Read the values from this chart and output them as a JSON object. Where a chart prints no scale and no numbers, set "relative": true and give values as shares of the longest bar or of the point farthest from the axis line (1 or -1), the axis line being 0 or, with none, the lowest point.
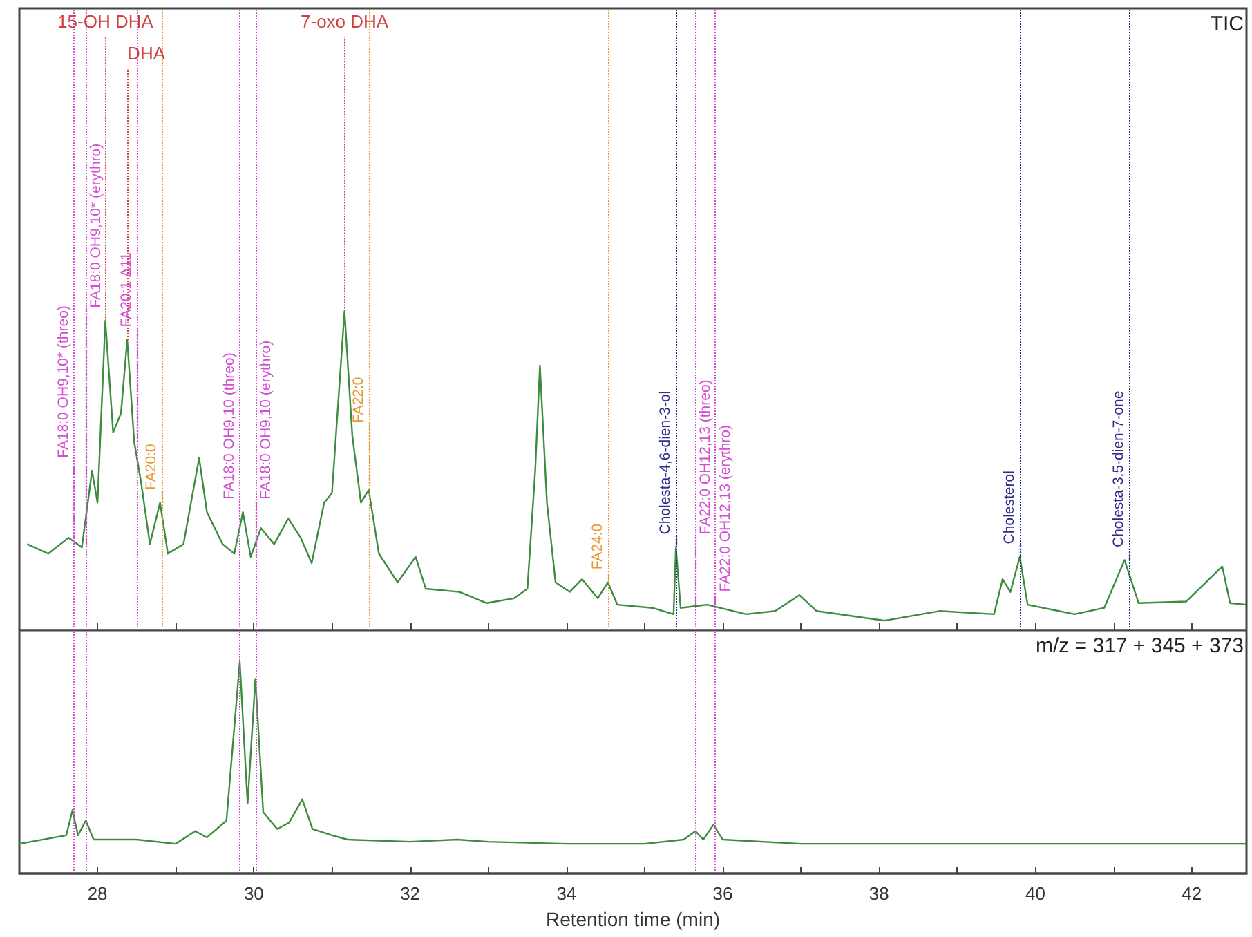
{
  "chart_data": [
    {
      "type": "line",
      "relative": true,
      "tick_labels": false,
      "xlim": [
        27,
        42.7
      ],
      "xticks": [
        {
          "value": 28,
          "label": null
        },
        {
          "value": 29,
          "label": null
        },
        {
          "value": 30,
          "label": null
        },
        {
          "value": 31,
          "label": null
        },
        {
          "value": 32,
          "label": null
        },
        {
          "value": 33,
          "label": null
        },
        {
          "value": 34,
          "label": null
        },
        {
          "value": 35,
          "label": null
        },
        {
          "value": 36,
          "label": null
        },
        {
          "value": 37,
          "label": null
        },
        {
          "value": 38,
          "label": null
        },
        {
          "value": 39,
          "label": null
        },
        {
          "value": 40,
          "label": null
        },
        {
          "value": 41,
          "label": null
        },
        {
          "value": 42,
          "label": null
        }
      ],
      "series": [
        {
          "color": "#3d8b3d",
          "x": [
            27.1,
            27.37,
            27.63,
            27.8,
            27.93,
            28.0,
            28.1,
            28.2,
            28.3,
            28.38,
            28.47,
            28.56,
            28.67,
            28.8,
            28.9,
            29.1,
            29.3,
            29.4,
            29.6,
            29.75,
            29.86,
            29.96,
            30.09,
            30.26,
            30.44,
            30.6,
            30.74,
            30.9,
            31.0,
            31.16,
            31.26,
            31.37,
            31.47,
            31.6,
            31.84,
            32.07,
            32.2,
            32.63,
            32.98,
            33.33,
            33.5,
            33.6,
            33.66,
            33.75,
            33.86,
            34.04,
            34.2,
            34.4,
            34.53,
            34.65,
            35.1,
            35.37,
            35.4,
            35.46,
            35.8,
            36.3,
            36.67,
            36.98,
            37.2,
            38.07,
            38.77,
            39.47,
            39.58,
            39.68,
            39.8,
            39.9,
            40.5,
            40.88,
            41.14,
            41.32,
            41.93,
            42.39,
            42.49,
            42.7
          ],
          "values": [
            0.27,
            0.24,
            0.29,
            0.26,
            0.5,
            0.4,
            0.97,
            0.62,
            0.68,
            0.91,
            0.59,
            0.46,
            0.27,
            0.4,
            0.24,
            0.27,
            0.54,
            0.37,
            0.27,
            0.24,
            0.37,
            0.23,
            0.32,
            0.27,
            0.35,
            0.29,
            0.21,
            0.4,
            0.43,
            1.0,
            0.61,
            0.4,
            0.44,
            0.24,
            0.15,
            0.23,
            0.13,
            0.12,
            0.085,
            0.1,
            0.13,
            0.5,
            0.83,
            0.4,
            0.15,
            0.12,
            0.16,
            0.1,
            0.15,
            0.08,
            0.07,
            0.05,
            0.26,
            0.07,
            0.08,
            0.05,
            0.06,
            0.11,
            0.06,
            0.03,
            0.06,
            0.05,
            0.16,
            0.12,
            0.23,
            0.08,
            0.05,
            0.07,
            0.22,
            0.085,
            0.09,
            0.2,
            0.085,
            0.08
          ]
        }
      ],
      "ref_lines": [
        {
          "axis": "x",
          "value": 27.7,
          "color": "#d24fd2",
          "line_style": "dotted"
        },
        {
          "axis": "x",
          "value": 27.85,
          "color": "#d24fd2",
          "line_style": "dotted"
        },
        {
          "axis": "x",
          "value": 28.5,
          "color": "#d24fd2",
          "line_style": "dotted"
        },
        {
          "axis": "x",
          "value": 28.82,
          "color": "#e8972e",
          "line_style": "dotted"
        },
        {
          "axis": "x",
          "value": 29.82,
          "color": "#d24fd2",
          "line_style": "dotted"
        },
        {
          "axis": "x",
          "value": 30.02,
          "color": "#d24fd2",
          "line_style": "dotted"
        },
        {
          "axis": "x",
          "value": 31.47,
          "color": "#e8972e",
          "line_style": "dotted"
        },
        {
          "axis": "x",
          "value": 34.53,
          "color": "#e8972e",
          "line_style": "dotted"
        },
        {
          "axis": "x",
          "value": 35.4,
          "color": "#2e2e8a",
          "line_style": "dotted"
        },
        {
          "axis": "x",
          "value": 35.65,
          "color": "#d24fd2",
          "line_style": "dotted"
        },
        {
          "axis": "x",
          "value": 35.9,
          "color": "#d24fd2",
          "line_style": "dotted"
        },
        {
          "axis": "x",
          "value": 39.8,
          "color": "#2e2e8a",
          "line_style": "dotted"
        },
        {
          "axis": "x",
          "value": 41.2,
          "color": "#2e2e8a",
          "line_style": "dotted"
        }
      ],
      "annotations": [
        {
          "text": "15-OH DHA",
          "x": 28.1,
          "y": 0.97
        },
        {
          "text": "DHA",
          "x": 28.38,
          "y": 0.91
        },
        {
          "text": "7-oxo DHA",
          "x": 31.16,
          "y": 1.0
        },
        {
          "text": "FA18:0 OH9,10* (threo)",
          "x": 27.7,
          "y": 0.29
        },
        {
          "text": "FA18:0 OH9,10* (erythro)",
          "x": 27.85,
          "y": 0.26
        },
        {
          "text": "FA20:1 Δ11",
          "x": 28.5,
          "y": 0.59
        },
        {
          "text": "FA20:0",
          "x": 28.82,
          "y": 0.4
        },
        {
          "text": "FA18:0 OH9,10 (threo)",
          "x": 29.82,
          "y": 0.37
        },
        {
          "text": "FA18:0 OH9,10 (erythro)",
          "x": 30.02,
          "y": 0.23
        },
        {
          "text": "FA22:0",
          "x": 31.47,
          "y": 0.44
        },
        {
          "text": "FA24:0",
          "x": 34.53,
          "y": 0.15
        },
        {
          "text": "Cholesta-4,6-dien-3-ol",
          "x": 35.4,
          "y": 0.26
        },
        {
          "text": "FA22:0 OH12,13 (threo)",
          "x": 35.65,
          "y": 0.08
        },
        {
          "text": "FA22:0 OH12,13 (erythro)",
          "x": 35.9,
          "y": 0.08
        },
        {
          "text": "Cholesterol",
          "x": 39.8,
          "y": 0.23
        },
        {
          "text": "Cholesta-3,5-dien-7-one",
          "x": 41.2,
          "y": 0.22
        },
        "TIC"
      ]
    },
    {
      "type": "line",
      "relative": true,
      "tick_labels": "x",
      "xlabel": "Retention time (min)",
      "xlim": [
        27,
        42.7
      ],
      "xticks": [
        {
          "value": 28,
          "label": "28"
        },
        {
          "value": 29,
          "label": null
        },
        {
          "value": 30,
          "label": "30"
        },
        {
          "value": 31,
          "label": null
        },
        {
          "value": 32,
          "label": "32"
        },
        {
          "value": 33,
          "label": null
        },
        {
          "value": 34,
          "label": "34"
        },
        {
          "value": 35,
          "label": null
        },
        {
          "value": 36,
          "label": "36"
        },
        {
          "value": 37,
          "label": null
        },
        {
          "value": 38,
          "label": "38"
        },
        {
          "value": 39,
          "label": null
        },
        {
          "value": 40,
          "label": "40"
        },
        {
          "value": 41,
          "label": null
        },
        {
          "value": 42,
          "label": "42"
        }
      ],
      "series": [
        {
          "color": "#3d8b3d",
          "x": [
            27.0,
            27.6,
            27.68,
            27.75,
            27.85,
            27.95,
            28.5,
            29.0,
            29.25,
            29.4,
            29.65,
            29.82,
            29.92,
            30.02,
            30.12,
            30.3,
            30.45,
            30.62,
            30.75,
            31.0,
            31.2,
            32.0,
            32.6,
            33.0,
            34.0,
            35.0,
            35.5,
            35.65,
            35.75,
            35.88,
            36.0,
            37.0,
            40.0,
            42.7
          ],
          "values": [
            0.14,
            0.18,
            0.3,
            0.18,
            0.25,
            0.16,
            0.16,
            0.14,
            0.2,
            0.17,
            0.25,
            1.0,
            0.33,
            0.92,
            0.29,
            0.21,
            0.24,
            0.35,
            0.21,
            0.18,
            0.16,
            0.15,
            0.16,
            0.15,
            0.14,
            0.14,
            0.16,
            0.2,
            0.16,
            0.23,
            0.16,
            0.14,
            0.14,
            0.14
          ]
        }
      ],
      "ref_lines": [
        {
          "axis": "x",
          "value": 27.7,
          "color": "#d24fd2",
          "line_style": "dotted"
        },
        {
          "axis": "x",
          "value": 27.85,
          "color": "#d24fd2",
          "line_style": "dotted"
        },
        {
          "axis": "x",
          "value": 29.82,
          "color": "#d24fd2",
          "line_style": "dotted"
        },
        {
          "axis": "x",
          "value": 30.02,
          "color": "#d24fd2",
          "line_style": "dotted"
        },
        {
          "axis": "x",
          "value": 35.65,
          "color": "#d24fd2",
          "line_style": "dotted"
        },
        {
          "axis": "x",
          "value": 35.9,
          "color": "#d24fd2",
          "line_style": "dotted"
        }
      ],
      "annotations": [
        "m/z = 317 + 345 + 373"
      ]
    }
  ]
}
